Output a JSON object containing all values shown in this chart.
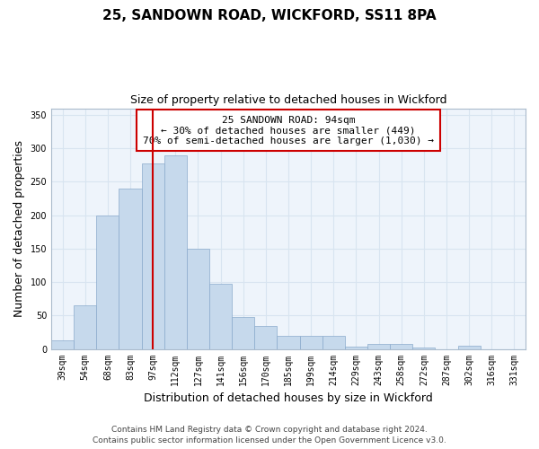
{
  "title": "25, SANDOWN ROAD, WICKFORD, SS11 8PA",
  "subtitle": "Size of property relative to detached houses in Wickford",
  "xlabel": "Distribution of detached houses by size in Wickford",
  "ylabel": "Number of detached properties",
  "categories": [
    "39sqm",
    "54sqm",
    "68sqm",
    "83sqm",
    "97sqm",
    "112sqm",
    "127sqm",
    "141sqm",
    "156sqm",
    "170sqm",
    "185sqm",
    "199sqm",
    "214sqm",
    "229sqm",
    "243sqm",
    "258sqm",
    "272sqm",
    "287sqm",
    "302sqm",
    "316sqm",
    "331sqm"
  ],
  "values": [
    13,
    65,
    200,
    240,
    278,
    290,
    150,
    97,
    48,
    35,
    19,
    20,
    19,
    4,
    8,
    8,
    2,
    0,
    5,
    0,
    0
  ],
  "bar_color": "#c6d9ec",
  "bar_edge_color": "#8aaacc",
  "vline_x": 4,
  "vline_color": "#cc0000",
  "ylim": [
    0,
    360
  ],
  "yticks": [
    0,
    50,
    100,
    150,
    200,
    250,
    300,
    350
  ],
  "annotation_title": "25 SANDOWN ROAD: 94sqm",
  "annotation_line1": "← 30% of detached houses are smaller (449)",
  "annotation_line2": "70% of semi-detached houses are larger (1,030) →",
  "footer1": "Contains HM Land Registry data © Crown copyright and database right 2024.",
  "footer2": "Contains public sector information licensed under the Open Government Licence v3.0.",
  "title_fontsize": 11,
  "subtitle_fontsize": 9,
  "axis_label_fontsize": 9,
  "tick_fontsize": 7,
  "annotation_fontsize": 8,
  "footer_fontsize": 6.5,
  "background_color": "#ffffff",
  "grid_color": "#d8e4f0",
  "plot_bg_color": "#eef4fb"
}
